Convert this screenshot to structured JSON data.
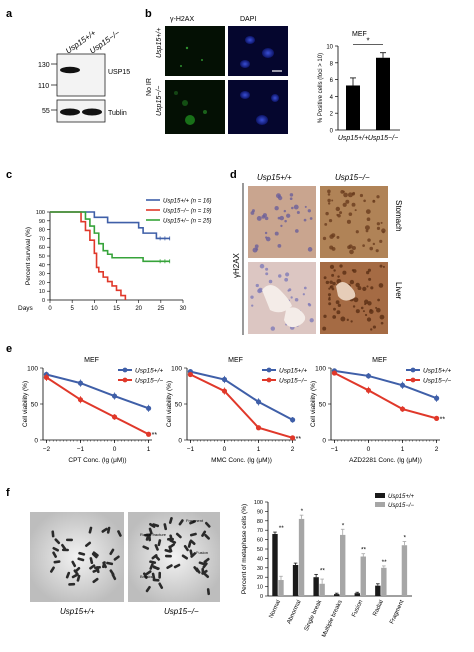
{
  "panels": {
    "a": "a",
    "b": "b",
    "c": "c",
    "d": "d",
    "e": "e",
    "f": "f"
  },
  "panel_a": {
    "lanes": [
      "Usp15+/+",
      "Usp15−/−"
    ],
    "mw": [
      "130",
      "110",
      "55"
    ],
    "bands": [
      "USP15",
      "Tublin"
    ]
  },
  "panel_b": {
    "col_headers": [
      "γ-H2AX",
      "DAPI"
    ],
    "group_label": "No IR",
    "row_labels": [
      "Usp15+/+",
      "Usp15−/−"
    ],
    "chart_title": "MEF",
    "sig": "*"
  },
  "panel_c": {
    "legend": [
      "Usp15+/+ (n = 16)",
      "Usp15−/− (n = 19)",
      "Usp15+/− (n = 25)"
    ]
  },
  "panel_d": {
    "col_headers": [
      "Usp15+/+",
      "Usp15−/−"
    ],
    "row_label": "γH2AX",
    "tissues": [
      "Stomach",
      "Liver"
    ]
  },
  "panel_e": {
    "legend": [
      "Usp15+/+",
      "Usp15−/−"
    ],
    "sig": "**"
  },
  "panel_f": {
    "image_labels": [
      "Usp15+/+",
      "Usp15−/−"
    ],
    "image_annotations": [
      "Fragment",
      "Radial fracture",
      "Fusion",
      "Breaks"
    ],
    "legend": [
      "Usp15+/+",
      "Usp15−/−"
    ]
  },
  "colors": {
    "wt": "#3f5fa8",
    "ko": "#e0382a",
    "het": "#36a33a",
    "bar_wt": "#1a1a1a",
    "bar_ko": "#a6a6a6"
  },
  "chart_data": [
    {
      "type": "bar",
      "id": "b",
      "title": "MEF",
      "categories": [
        "Usp15+/+",
        "Usp15−/−"
      ],
      "values": [
        5.3,
        8.6
      ],
      "errors": [
        0.9,
        0.6
      ],
      "ylabel": "% Positive cells (foci > 10)",
      "ylim": [
        0,
        10
      ],
      "yticks": [
        0,
        2,
        4,
        6,
        8,
        10
      ]
    },
    {
      "type": "line",
      "id": "c",
      "xlabel": "Days",
      "ylabel": "Percent survival (%)",
      "xlim": [
        0,
        30
      ],
      "ylim": [
        0,
        100
      ],
      "xticks": [
        0,
        5,
        10,
        15,
        20,
        25,
        30
      ],
      "yticks": [
        0,
        10,
        20,
        30,
        40,
        50,
        60,
        70,
        80,
        90,
        100
      ],
      "series": [
        {
          "name": "Usp15+/+ (n = 16)",
          "steps": [
            [
              0,
              100
            ],
            [
              9,
              100
            ],
            [
              10,
              94
            ],
            [
              12,
              94
            ],
            [
              13,
              88
            ],
            [
              19,
              88
            ],
            [
              20,
              82
            ],
            [
              21,
              76
            ],
            [
              23,
              76
            ],
            [
              24,
              70
            ],
            [
              27,
              70
            ]
          ]
        },
        {
          "name": "Usp15−/− (n = 19)",
          "steps": [
            [
              0,
              100
            ],
            [
              6,
              100
            ],
            [
              7,
              89
            ],
            [
              8,
              79
            ],
            [
              9,
              68
            ],
            [
              10,
              53
            ],
            [
              10.5,
              37
            ],
            [
              11,
              32
            ],
            [
              12,
              26
            ],
            [
              13,
              21
            ],
            [
              14,
              16
            ],
            [
              15,
              11
            ],
            [
              16,
              5
            ],
            [
              17,
              0
            ]
          ]
        },
        {
          "name": "Usp15+/− (n = 25)",
          "steps": [
            [
              0,
              100
            ],
            [
              7,
              100
            ],
            [
              8,
              92
            ],
            [
              9,
              84
            ],
            [
              10,
              76
            ],
            [
              11,
              64
            ],
            [
              12,
              56
            ],
            [
              13,
              52
            ],
            [
              14,
              48
            ],
            [
              20,
              48
            ],
            [
              21,
              44
            ],
            [
              27,
              44
            ]
          ]
        }
      ]
    },
    {
      "type": "line",
      "id": "e1",
      "title": "MEF",
      "xlabel": "CPT Conc. (lg (μM))",
      "ylabel": "Cell viability (%)",
      "xlim": [
        -2.1,
        1.1
      ],
      "ylim": [
        0,
        100
      ],
      "xticks": [
        -2,
        -1,
        0,
        1
      ],
      "yticks": [
        0,
        50,
        100
      ],
      "series": [
        {
          "name": "Usp15+/+",
          "x": [
            -2,
            -1,
            0,
            1
          ],
          "y": [
            91,
            79,
            61,
            44
          ],
          "err": [
            4,
            5,
            5,
            5
          ]
        },
        {
          "name": "Usp15−/−",
          "x": [
            -2,
            -1,
            0,
            1
          ],
          "y": [
            87,
            56,
            32,
            8
          ],
          "err": [
            5,
            5,
            4,
            2
          ]
        }
      ]
    },
    {
      "type": "line",
      "id": "e2",
      "title": "MEF",
      "xlabel": "MMC Conc. (lg (μM))",
      "ylabel": "Cell viability (%)",
      "xlim": [
        -1.1,
        2.1
      ],
      "ylim": [
        0,
        100
      ],
      "xticks": [
        -1,
        0,
        1,
        2
      ],
      "yticks": [
        0,
        50,
        100
      ],
      "series": [
        {
          "name": "Usp15+/+",
          "x": [
            -1,
            0,
            1,
            2
          ],
          "y": [
            95,
            84,
            53,
            28
          ],
          "err": [
            3,
            5,
            5,
            4
          ]
        },
        {
          "name": "Usp15−/−",
          "x": [
            -1,
            0,
            1,
            2
          ],
          "y": [
            91,
            68,
            17,
            3
          ],
          "err": [
            3,
            5,
            3,
            2
          ]
        }
      ]
    },
    {
      "type": "line",
      "id": "e3",
      "title": "MEF",
      "xlabel": "AZD2281 Conc. (lg (μM))",
      "ylabel": "Cell viability (%)",
      "xlim": [
        -1.1,
        2.1
      ],
      "ylim": [
        0,
        100
      ],
      "xticks": [
        -1,
        0,
        1,
        2
      ],
      "yticks": [
        0,
        50,
        100
      ],
      "series": [
        {
          "name": "Usp15+/+",
          "x": [
            -1,
            0,
            1,
            2
          ],
          "y": [
            96,
            89,
            76,
            58
          ],
          "err": [
            3,
            4,
            5,
            5
          ]
        },
        {
          "name": "Usp15−/−",
          "x": [
            -1,
            0,
            1,
            2
          ],
          "y": [
            93,
            69,
            43,
            30
          ],
          "err": [
            3,
            5,
            4,
            3
          ]
        }
      ]
    },
    {
      "type": "bar",
      "id": "f",
      "ylabel": "Percent of metaphase cells (%)",
      "ylim": [
        0,
        100
      ],
      "yticks": [
        0,
        10,
        20,
        30,
        40,
        50,
        60,
        70,
        80,
        90,
        100
      ],
      "categories": [
        "Normal",
        "Abnormal",
        "Single break",
        "Multiple breaks",
        "Fusion",
        "Radial",
        "Fragment"
      ],
      "series": [
        {
          "name": "Usp15+/+",
          "values": [
            66,
            33,
            20,
            2,
            3,
            11,
            0
          ],
          "err": [
            2,
            2,
            3,
            1,
            1,
            2,
            0
          ]
        },
        {
          "name": "Usp15−/−",
          "values": [
            17,
            82,
            13,
            65,
            42,
            30,
            54
          ],
          "err": [
            4,
            4,
            5,
            6,
            3,
            2,
            4
          ]
        }
      ],
      "sig": [
        "**",
        "*",
        "**",
        "*",
        "**",
        "**",
        "*"
      ]
    }
  ]
}
